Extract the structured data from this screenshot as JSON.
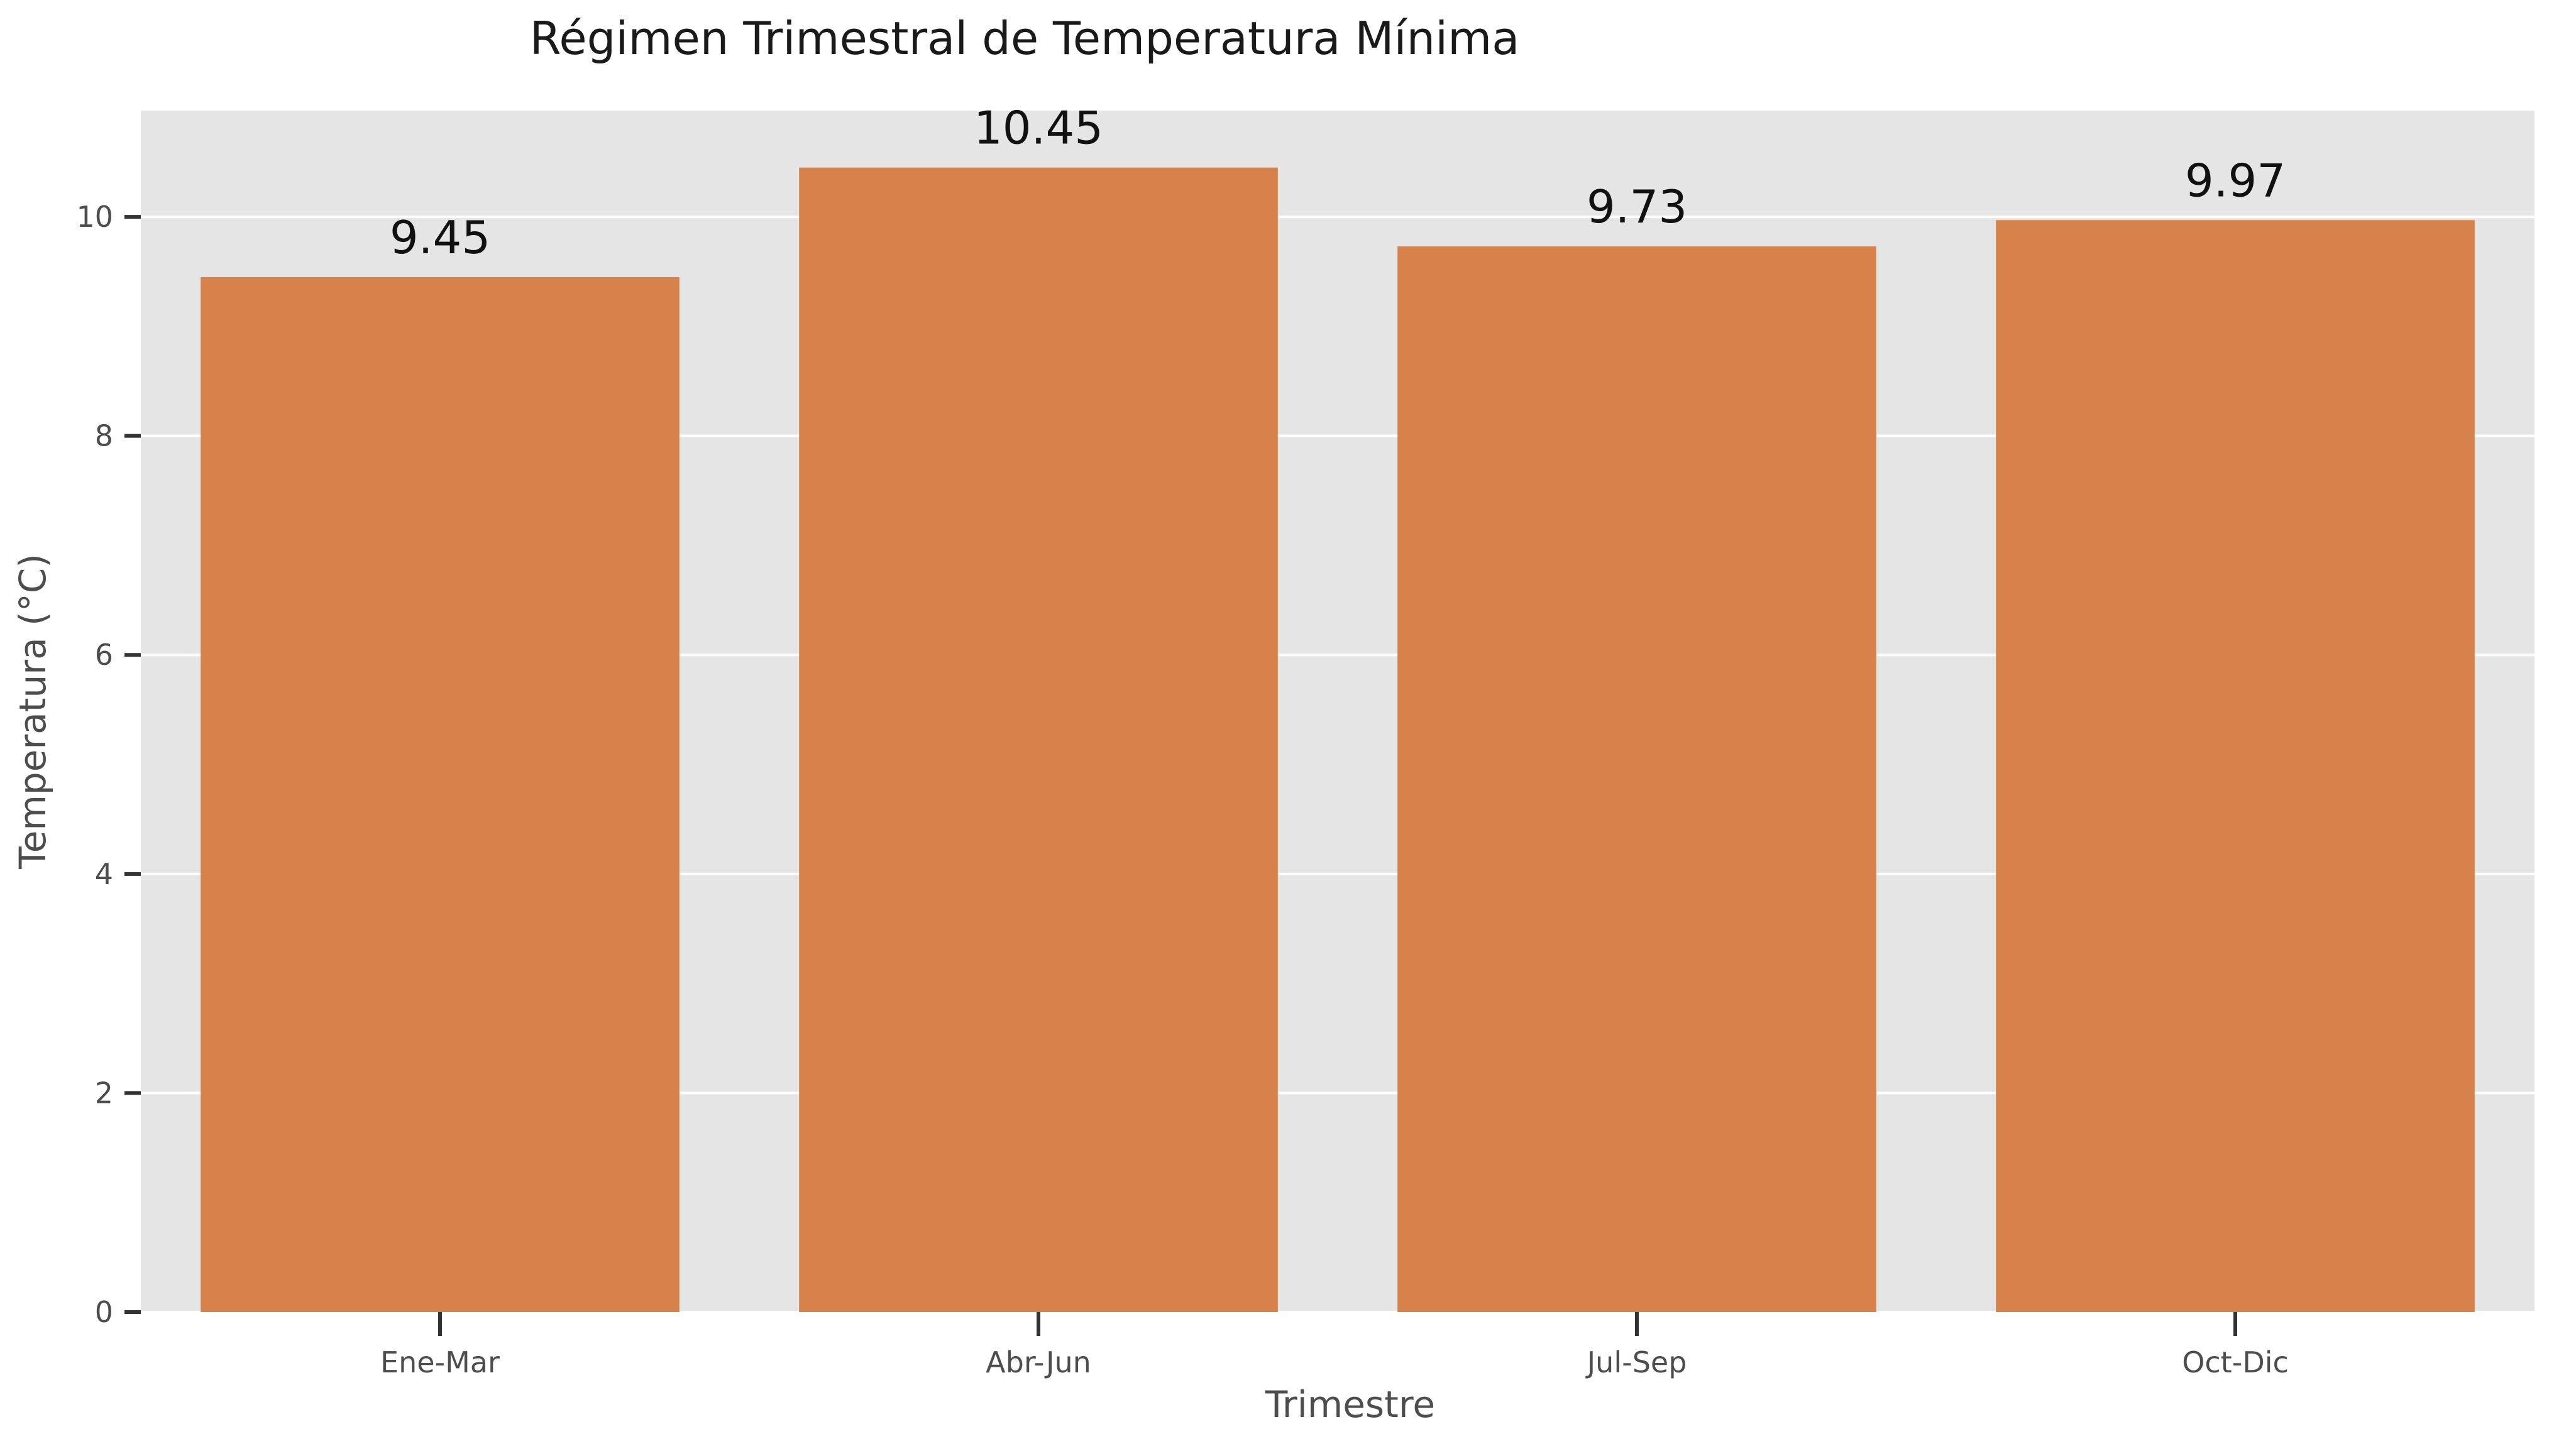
{
  "chart_data": {
    "type": "bar",
    "title": "Régimen Trimestral de Temperatura Mínima",
    "xlabel": "Trimestre",
    "ylabel": "Temperatura (°C)",
    "categories": [
      "Ene-Mar",
      "Abr-Jun",
      "Jul-Sep",
      "Oct-Dic"
    ],
    "values": [
      9.45,
      10.45,
      9.73,
      9.97
    ],
    "data_labels": [
      "9.45",
      "10.45",
      "9.73",
      "9.97"
    ],
    "yticks": [
      0,
      2,
      4,
      6,
      8,
      10
    ],
    "ytick_labels": [
      "0",
      "2",
      "4",
      "6",
      "8",
      "10"
    ],
    "ylim": [
      0,
      10.97
    ],
    "grid": true,
    "legend": "none",
    "colors": {
      "bar": "#d7824a",
      "panel": "#e5e5e5",
      "grid": "#ffffff",
      "tick": "#333333"
    }
  }
}
